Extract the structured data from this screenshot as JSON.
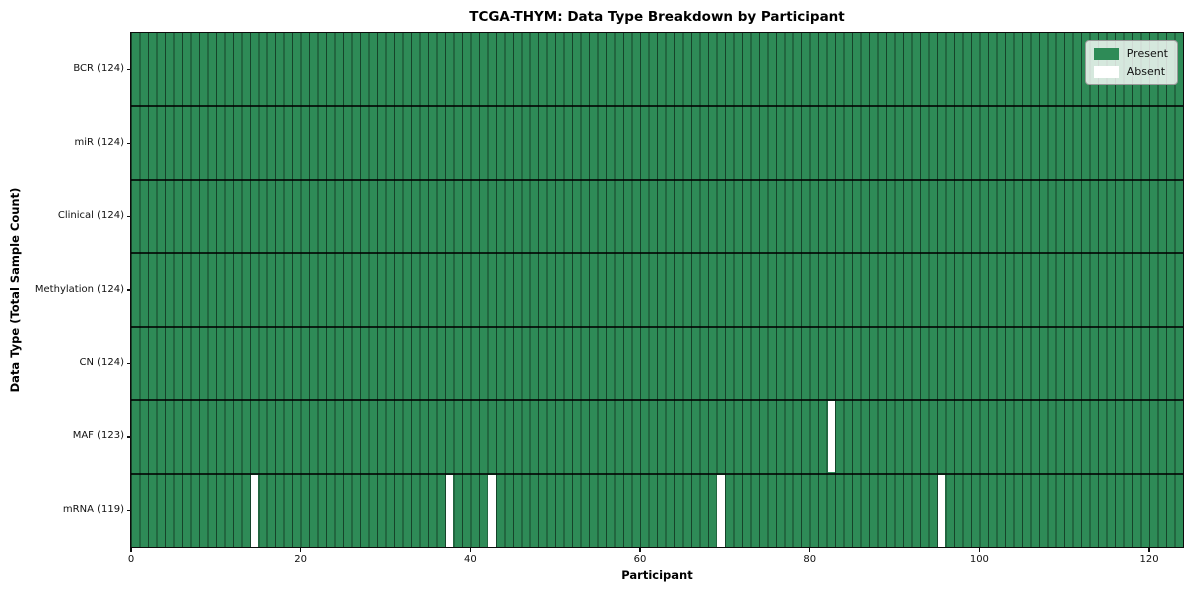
{
  "chart_data": {
    "type": "heatmap",
    "title": "TCGA-THYM: Data Type Breakdown by Participant",
    "xlabel": "Participant",
    "ylabel": "Data Type (Total Sample Count)",
    "n_participants": 124,
    "x_ticks": [
      0,
      20,
      40,
      60,
      80,
      100,
      120
    ],
    "rows": [
      {
        "label": "BCR (124)",
        "data_type": "BCR",
        "total_sample_count": 124,
        "absent_participant_indices": []
      },
      {
        "label": "miR (124)",
        "data_type": "miR",
        "total_sample_count": 124,
        "absent_participant_indices": []
      },
      {
        "label": "Clinical (124)",
        "data_type": "Clinical",
        "total_sample_count": 124,
        "absent_participant_indices": []
      },
      {
        "label": "Methylation (124)",
        "data_type": "Methylation",
        "total_sample_count": 124,
        "absent_participant_indices": []
      },
      {
        "label": "CN (124)",
        "data_type": "CN",
        "total_sample_count": 124,
        "absent_participant_indices": []
      },
      {
        "label": "MAF (123)",
        "data_type": "MAF",
        "total_sample_count": 123,
        "absent_participant_indices": [
          82
        ]
      },
      {
        "label": "mRNA (119)",
        "data_type": "mRNA",
        "total_sample_count": 119,
        "absent_participant_indices": [
          14,
          37,
          42,
          69,
          95
        ]
      }
    ],
    "legend": [
      {
        "label": "Present",
        "color": "#2e8b57"
      },
      {
        "label": "Absent",
        "color": "#ffffff"
      }
    ],
    "colors": {
      "present": "#2e8b57",
      "absent": "#ffffff",
      "cell_edge": "rgba(0,0,0,0.52)",
      "row_separator": "rgba(0,0,0,0.78)"
    },
    "legend_position": "upper right",
    "grid": "cell edges on"
  }
}
